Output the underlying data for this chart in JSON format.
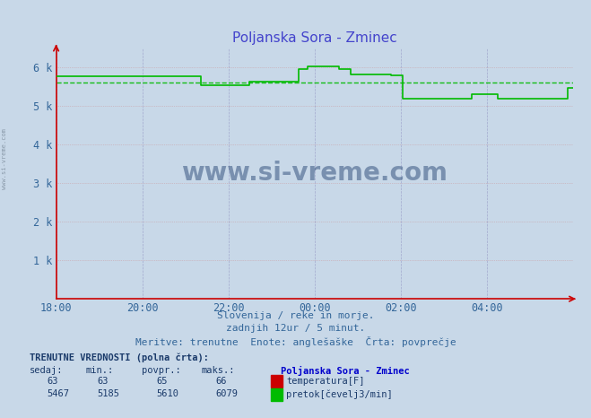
{
  "title": "Poljanska Sora - Zminec",
  "title_color": "#4444cc",
  "bg_color": "#c8d8e8",
  "plot_bg_color": "#c8d8e8",
  "xlabel_text1": "Slovenija / reke in morje.",
  "xlabel_text2": "zadnjih 12ur / 5 minut.",
  "xlabel_text3": "Meritve: trenutne  Enote: anglešaške  Črta: povprečje",
  "ylabel_color": "#336699",
  "watermark": "www.si-vreme.com",
  "x_ticks": [
    "18:00",
    "20:00",
    "22:00",
    "00:00",
    "02:00",
    "04:00"
  ],
  "ylim": [
    0,
    6500
  ],
  "yticks": [
    0,
    1000,
    2000,
    3000,
    4000,
    5000,
    6000
  ],
  "ytick_labels": [
    "",
    "1 k",
    "2 k",
    "3 k",
    "4 k",
    "5 k",
    "6 k"
  ],
  "avg_flow": 5610,
  "flow_color": "#00bb00",
  "temp_color": "#cc0000",
  "bottom_text_color": "#1a3a6a",
  "legend_title_color": "#0000cc",
  "table_values": {
    "sedaj_temp": 63,
    "min_temp": 63,
    "povpr_temp": 65,
    "maks_temp": 66,
    "sedaj_flow": 5467,
    "min_flow": 5185,
    "povpr_flow": 5610,
    "maks_flow": 6079
  },
  "flow_data": [
    5780,
    5780,
    5780,
    5780,
    5780,
    5780,
    5780,
    5780,
    5780,
    5780,
    5780,
    5780,
    5780,
    5780,
    5780,
    5780,
    5780,
    5780,
    5780,
    5780,
    5780,
    5780,
    5780,
    5780,
    5780,
    5780,
    5780,
    5780,
    5780,
    5780,
    5780,
    5780,
    5780,
    5780,
    5780,
    5780,
    5780,
    5780,
    5780,
    5780,
    5780,
    5780,
    5780,
    5780,
    5780,
    5780,
    5780,
    5780,
    5780,
    5780,
    5540,
    5540,
    5540,
    5540,
    5540,
    5540,
    5540,
    5540,
    5540,
    5540,
    5540,
    5540,
    5540,
    5540,
    5540,
    5540,
    5540,
    5620,
    5620,
    5620,
    5620,
    5620,
    5620,
    5620,
    5620,
    5620,
    5620,
    5620,
    5620,
    5620,
    5620,
    5620,
    5620,
    5620,
    5960,
    5960,
    5960,
    6020,
    6020,
    6020,
    6020,
    6020,
    6020,
    6020,
    6020,
    6020,
    6020,
    6020,
    5960,
    5960,
    5960,
    5960,
    5820,
    5820,
    5820,
    5820,
    5820,
    5820,
    5820,
    5820,
    5820,
    5820,
    5820,
    5820,
    5820,
    5820,
    5800,
    5800,
    5800,
    5800,
    5200,
    5200,
    5200,
    5200,
    5200,
    5200,
    5200,
    5200,
    5200,
    5200,
    5200,
    5200,
    5200,
    5200,
    5200,
    5200,
    5200,
    5200,
    5200,
    5200,
    5200,
    5200,
    5200,
    5200,
    5300,
    5300,
    5300,
    5300,
    5300,
    5300,
    5300,
    5300,
    5300,
    5200,
    5200,
    5200,
    5200,
    5200,
    5200,
    5200,
    5200,
    5200,
    5200,
    5200,
    5200,
    5200,
    5200,
    5200,
    5200,
    5200,
    5200,
    5200,
    5200,
    5200,
    5200,
    5200,
    5200,
    5460,
    5460,
    5460
  ]
}
